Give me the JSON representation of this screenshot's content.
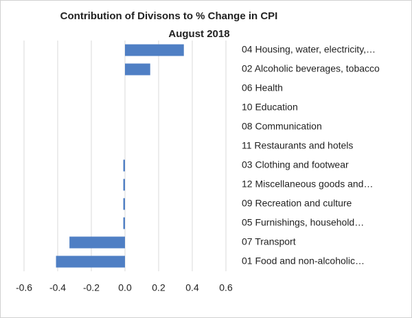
{
  "chart_data": {
    "type": "bar",
    "orientation": "horizontal",
    "title": "Contribution of Divisons to % Change in CPI",
    "subtitle": "August 2018",
    "categories": [
      "04 Housing, water, electricity,…",
      "02 Alcoholic beverages, tobacco",
      "06 Health",
      "10 Education",
      "08 Communication",
      "11 Restaurants and hotels",
      "03 Clothing and footwear",
      "12 Miscellaneous goods and…",
      "09 Recreation and culture",
      "05 Furnishings, household…",
      "07 Transport",
      "01 Food and non-alcoholic…"
    ],
    "values": [
      0.35,
      0.15,
      0,
      0,
      0,
      0,
      -0.01,
      -0.01,
      -0.01,
      -0.01,
      -0.33,
      -0.41
    ],
    "color": "#4f7fc4",
    "xlim": [
      -0.6,
      0.6
    ],
    "xticks": [
      -0.6,
      -0.4,
      -0.2,
      {
        "value": 0,
        "label": "0.0"
      },
      0.2,
      0.4,
      0.6
    ],
    "grid": true
  }
}
